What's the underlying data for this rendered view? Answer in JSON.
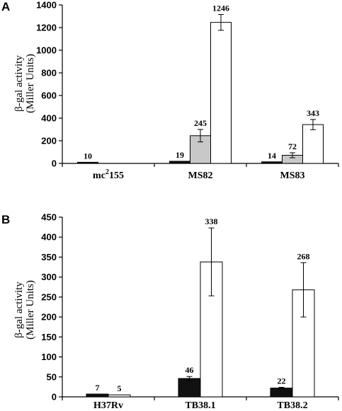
{
  "chart_data": [
    {
      "panel": "A",
      "type": "bar",
      "ylabel_line1": "β-gal activity",
      "ylabel_line2": "(Miller Units)",
      "ylim": [
        0,
        1400
      ],
      "yticks": [
        "0",
        "200",
        "400",
        "600",
        "800",
        "1000",
        "1200",
        "1400"
      ],
      "categories": [
        "mc²155",
        "MS82",
        "MS83"
      ],
      "category_parts": [
        [
          "mc",
          "2",
          "155"
        ],
        [
          "MS82",
          "",
          ""
        ],
        [
          "MS83",
          "",
          ""
        ]
      ],
      "series": [
        {
          "color": "#111111",
          "values": [
            10,
            19,
            14
          ],
          "errors": [
            0,
            0,
            0
          ]
        },
        {
          "color": "#c8c8c8",
          "values": [
            null,
            245,
            72
          ],
          "errors": [
            0,
            55,
            22
          ]
        },
        {
          "color": "#ffffff",
          "values": [
            null,
            1246,
            343
          ],
          "errors": [
            0,
            70,
            45
          ]
        }
      ],
      "data_labels": [
        [
          "10",
          "19",
          "14"
        ],
        [
          "",
          "245",
          "72"
        ],
        [
          "",
          "1246",
          "343"
        ]
      ],
      "grid": false
    },
    {
      "panel": "B",
      "type": "bar",
      "ylabel_line1": "β-gal activity",
      "ylabel_line2": "(Miller Units)",
      "ylim": [
        0,
        450
      ],
      "yticks": [
        "0",
        "50",
        "100",
        "150",
        "200",
        "250",
        "300",
        "350",
        "400",
        "450"
      ],
      "categories": [
        "H37Rv",
        "TB38.1",
        "TB38.2"
      ],
      "category_parts": [
        [
          "H37Rv",
          "",
          ""
        ],
        [
          "TB38.1",
          "",
          ""
        ],
        [
          "TB38.2",
          "",
          ""
        ]
      ],
      "series": [
        {
          "color": "#111111",
          "values": [
            7,
            46,
            22
          ],
          "errors": [
            0,
            5,
            2
          ]
        },
        {
          "color": "#ffffff",
          "values": [
            5,
            338,
            268
          ],
          "errors": [
            0,
            85,
            68
          ]
        }
      ],
      "data_labels": [
        [
          "7",
          "46",
          "22"
        ],
        [
          "5",
          "338",
          "268"
        ]
      ],
      "grid": false
    }
  ]
}
